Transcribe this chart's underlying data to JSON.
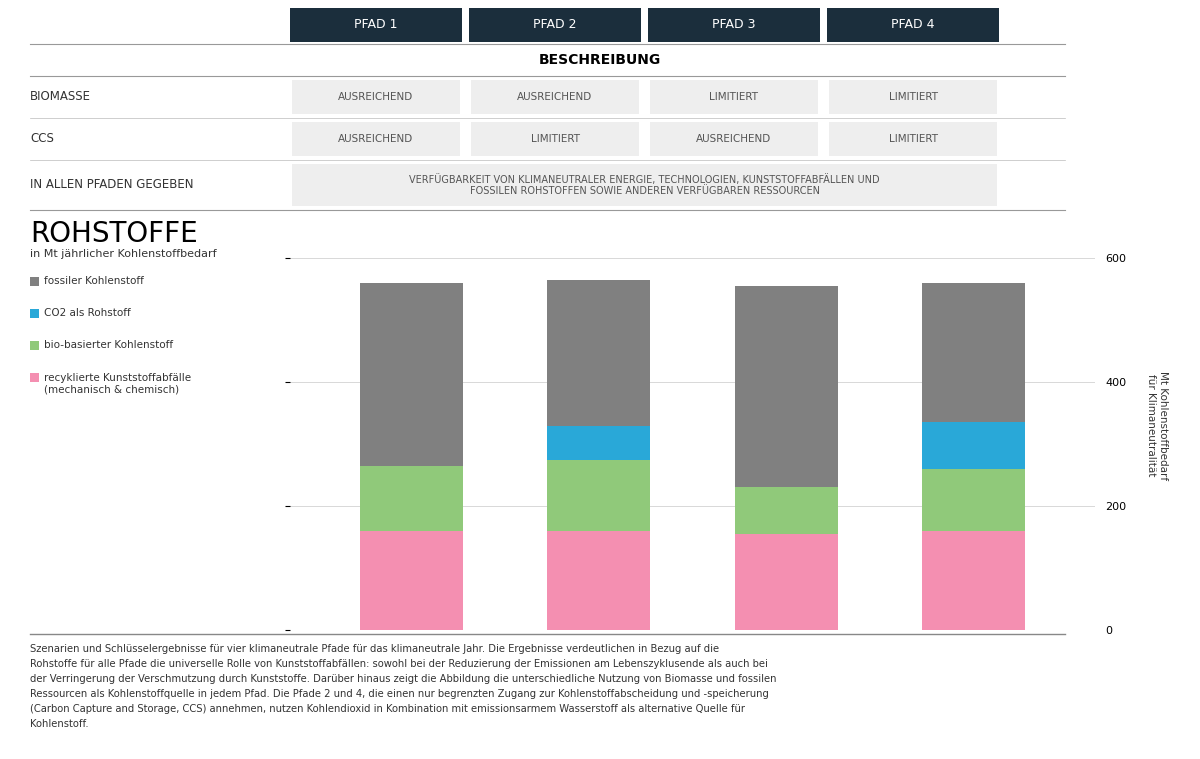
{
  "pfad_labels": [
    "PFAD 1",
    "PFAD 2",
    "PFAD 3",
    "PFAD 4"
  ],
  "header_bg": "#1b2e3c",
  "header_text_color": "#ffffff",
  "beschreibung_label": "BESCHREIBUNG",
  "biomasse_values": [
    "AUSREICHEND",
    "AUSREICHEND",
    "LIMITIERT",
    "LIMITIERT"
  ],
  "ccs_values": [
    "AUSREICHEND",
    "LIMITIERT",
    "AUSREICHEND",
    "LIMITIERT"
  ],
  "allen_pfaden_text": "VERFÜGBARKEIT VON KLIMANEUTRALER ENERGIE, TECHNOLOGIEN, KUNSTSTOFFABFÄLLEN UND\nFOSSILEN ROHSTOFFEN SOWIE ANDEREN VERFÜGBAREN RESSOURCEN",
  "chart_title": "ROHSTOFFE",
  "chart_subtitle": "in Mt jährlicher Kohlenstoffbedarf",
  "y_axis_right_label": "Mt Kohlenstoffbedarf\nfür Klimaneutralität",
  "bar_categories": [
    "fossiler Kohlenstoff",
    "CO2 als Rohstoff",
    "bio-basierter Kohlenstoff",
    "recyklierte Kunststoffabfälle\n(mechanisch & chemisch)"
  ],
  "bar_colors": [
    "#808080",
    "#29a8d8",
    "#90c97a",
    "#f48fb1"
  ],
  "bar_data": {
    "recycled": [
      160,
      160,
      155,
      160
    ],
    "bio": [
      105,
      115,
      75,
      100
    ],
    "co2": [
      0,
      55,
      0,
      75
    ],
    "fossil": [
      295,
      235,
      325,
      225
    ]
  },
  "ylim": [
    0,
    660
  ],
  "yticks": [
    0,
    200,
    400,
    600
  ],
  "bar_width": 0.55,
  "grid_color": "#d8d8d8",
  "background_color": "#ffffff",
  "cell_bg": "#eeeeee",
  "line_color": "#aaaaaa",
  "footnote": "Szenarien und Schlüsselergebnisse für vier klimaneutrale Pfade für das klimaneutrale Jahr. Die Ergebnisse verdeutlichen in Bezug auf die Rohstoffe für alle Pfade die universelle Rolle von Kunststoffabfällen: sowohl bei der Reduzierung der Emissionen am Lebenszyklusende als auch bei der Verringerung der Verschmutzung durch Kunststoffe. Darüber hinaus zeigt die Abbildung die unterschiedliche Nutzung von Biomasse und fossilen Ressourcen als Kohlenstoffquelle in jedem Pfad. Die Pfade 2 und 4, die einen nur begrenzten Zugang zur Kohlenstoffabscheidung und -speicherung (Carbon Capture and Storage, CCS) annehmen, nutzen Kohlendioxid in Kombination mit emissionsarmem Wasserstoff als alternative Quelle für Kohlenstoff."
}
